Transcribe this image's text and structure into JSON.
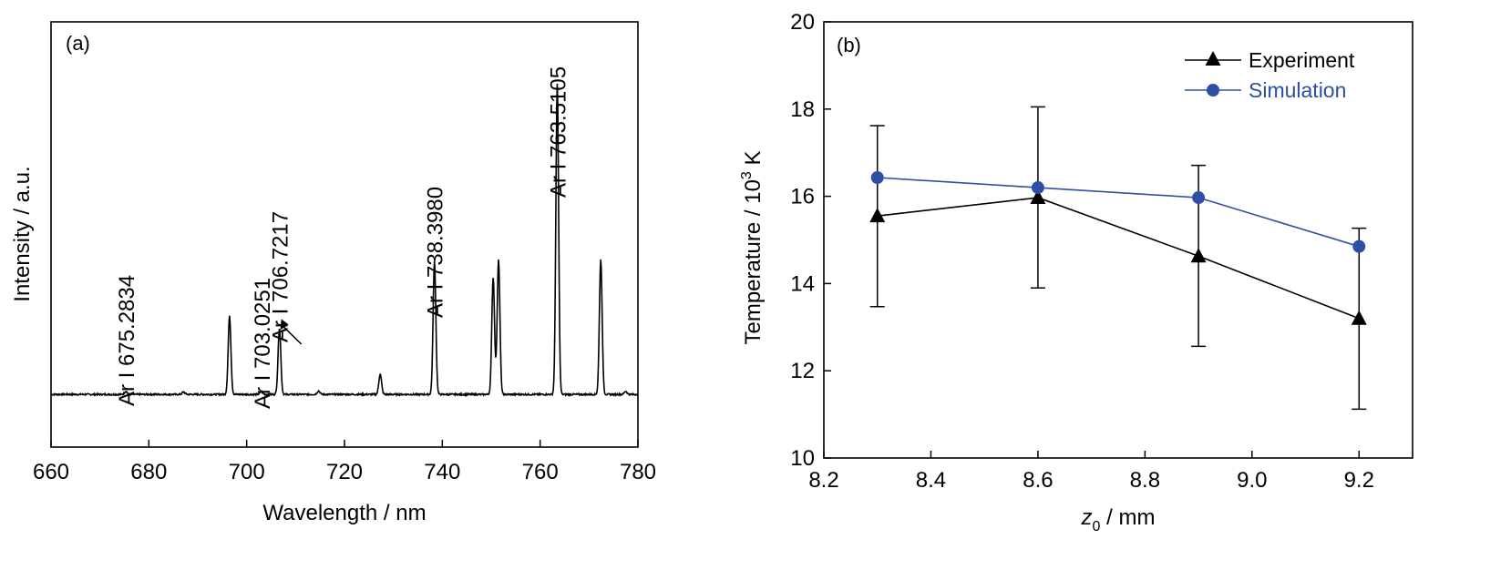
{
  "chart_data": [
    {
      "type": "line",
      "panel_label": "(a)",
      "xlabel": "Wavelength / nm",
      "ylabel": "Intensity / a.u.",
      "xlim": [
        660,
        780
      ],
      "ylim": [
        -0.09,
        1.0
      ],
      "xticks": [
        "660",
        "680",
        "700",
        "720",
        "740",
        "760",
        "780"
      ],
      "yticks_shown": false,
      "baseline": 0.045,
      "peaks": [
        {
          "x": 675.3,
          "y": 0.053
        },
        {
          "x": 687.1,
          "y": 0.051
        },
        {
          "x": 696.5,
          "y": 0.245
        },
        {
          "x": 703.0,
          "y": 0.052
        },
        {
          "x": 706.7,
          "y": 0.215
        },
        {
          "x": 714.7,
          "y": 0.054
        },
        {
          "x": 727.3,
          "y": 0.097
        },
        {
          "x": 738.4,
          "y": 0.385
        },
        {
          "x": 750.4,
          "y": 0.345
        },
        {
          "x": 751.5,
          "y": 0.39
        },
        {
          "x": 763.5,
          "y": 0.84
        },
        {
          "x": 772.4,
          "y": 0.39
        },
        {
          "x": 777.5,
          "y": 0.053
        }
      ],
      "annotations": [
        {
          "text": "Ar I 675.2834",
          "x": 675.3
        },
        {
          "text": "Ar I 703.0251",
          "x": 703.0
        },
        {
          "text": "Ar I 706.7217",
          "x": 706.7,
          "arrow": true
        },
        {
          "text": "Ar I 738.3980",
          "x": 738.4
        },
        {
          "text": "Ar I 763.5105",
          "x": 763.5
        }
      ]
    },
    {
      "type": "line",
      "panel_label": "(b)",
      "xlabel_symbol": "z",
      "xlabel_subscript": "0",
      "xlabel_unit": " / mm",
      "ylabel_main": "Temperature / 10",
      "ylabel_sup": "3",
      "ylabel_unit": " K",
      "xlim": [
        8.2,
        9.3
      ],
      "ylim": [
        10,
        20
      ],
      "xticks": [
        "8.2",
        "8.4",
        "8.6",
        "8.8",
        "9.0",
        "9.2"
      ],
      "yticks": [
        "10",
        "12",
        "14",
        "16",
        "18",
        "20"
      ],
      "legend_position": "top-right",
      "x": [
        8.3,
        8.6,
        8.9,
        9.2
      ],
      "series": [
        {
          "name": "Experiment",
          "marker": "triangle",
          "color": "#000000",
          "values": [
            15.55,
            15.97,
            14.63,
            13.2
          ],
          "error_low": [
            13.47,
            13.9,
            12.56,
            11.12
          ],
          "error_high": [
            17.62,
            18.05,
            16.71,
            15.27
          ]
        },
        {
          "name": "Simulation",
          "marker": "circle",
          "color": "#2e4fa3",
          "values": [
            16.43,
            16.2,
            15.97,
            14.85
          ]
        }
      ]
    }
  ]
}
